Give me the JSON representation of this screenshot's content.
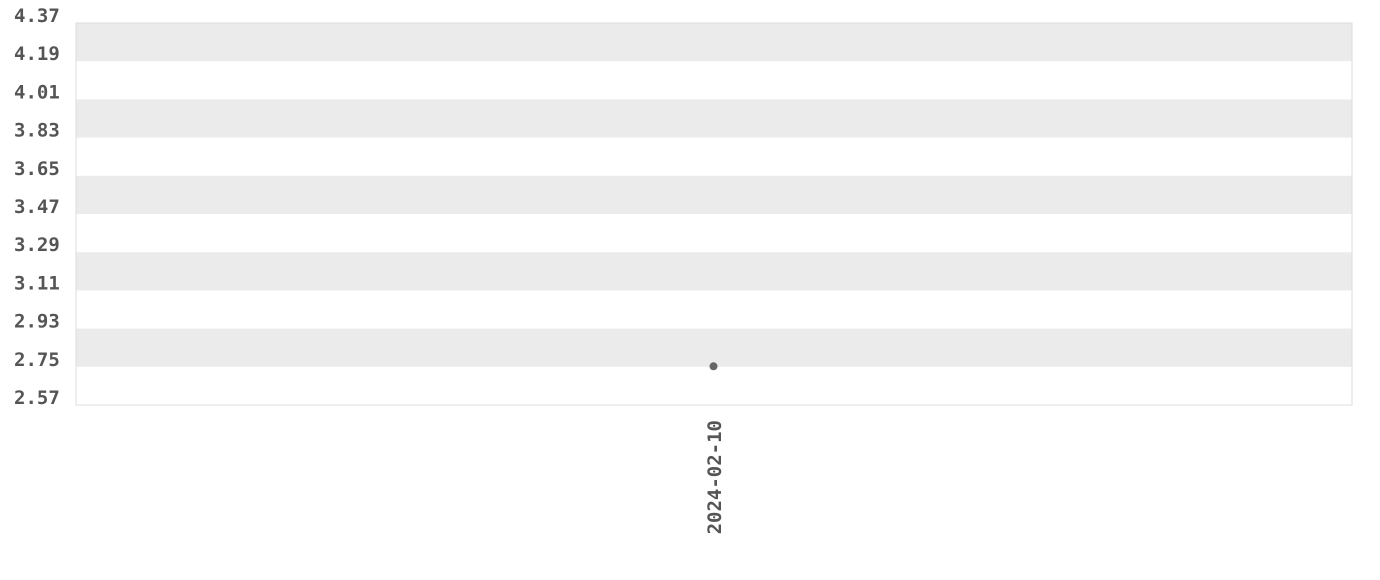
{
  "chart_data": {
    "type": "scatter",
    "title": "",
    "xlabel": "",
    "ylabel": "",
    "x_categories": [
      "2024-02-10"
    ],
    "points": [
      {
        "x": "2024-02-10",
        "y": 2.75
      }
    ],
    "ylim": [
      2.57,
      4.37
    ],
    "y_ticks": [
      "4.37",
      "4.19",
      "4.01",
      "3.83",
      "3.65",
      "3.47",
      "3.29",
      "3.11",
      "2.93",
      "2.75",
      "2.57"
    ],
    "grid": "alternating horizontal bands",
    "colors": {
      "band": "#ebebeb",
      "point": "#666666",
      "border": "#dddddd",
      "text": "#555555"
    }
  }
}
